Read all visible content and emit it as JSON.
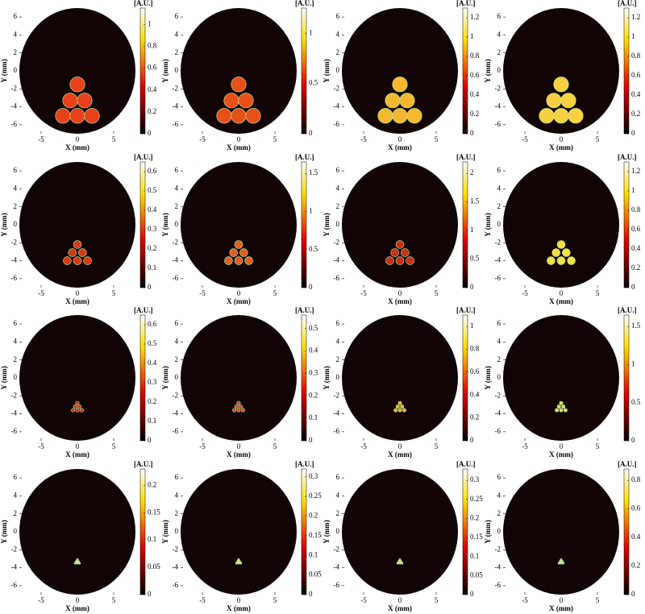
{
  "chart_data": [
    {
      "type": "heatmap",
      "xlabel": "X (mm)",
      "ylabel": "Y (mm)",
      "colorbar_label": "[A.U.]",
      "xlim": [
        -8,
        8
      ],
      "ylim": [
        -7,
        7
      ],
      "xticks": [
        -5,
        0,
        5
      ],
      "yticks": [
        -6,
        -4,
        -2,
        0,
        2,
        4,
        6
      ],
      "clim": [
        0,
        1.15
      ],
      "cticks": [
        0,
        0.2,
        0.4,
        0.6,
        0.8,
        1
      ],
      "x": [
        0,
        -1,
        1,
        -2,
        0,
        2
      ],
      "y": [
        -1.5,
        -3.3,
        -3.3,
        -5,
        -5,
        -5
      ],
      "color": "#e8401a"
    },
    {
      "type": "heatmap",
      "xlabel": "X (mm)",
      "ylabel": "Y (mm)",
      "colorbar_label": "[A.U.]",
      "xlim": [
        -8,
        8
      ],
      "ylim": [
        -7,
        7
      ],
      "xticks": [
        -5,
        0,
        5
      ],
      "yticks": [
        -6,
        -4,
        -2,
        0,
        2,
        4,
        6
      ],
      "clim": [
        0,
        1.25
      ],
      "cticks": [
        0,
        0.5,
        1
      ],
      "x": [
        0,
        -1,
        1,
        -2,
        0,
        2
      ],
      "y": [
        -1.5,
        -3.3,
        -3.3,
        -5,
        -5,
        -5
      ],
      "color": "#e8501a"
    },
    {
      "type": "heatmap",
      "xlabel": "X (mm)",
      "ylabel": "Y (mm)",
      "colorbar_label": "[A.U.]",
      "xlim": [
        -8,
        8
      ],
      "ylim": [
        -7,
        7
      ],
      "xticks": [
        -5,
        0,
        5
      ],
      "yticks": [
        -6,
        -4,
        -2,
        0,
        2,
        4,
        6
      ],
      "clim": [
        0,
        1.3
      ],
      "cticks": [
        0,
        0.2,
        0.4,
        0.6,
        0.8,
        1,
        1.2
      ],
      "x": [
        0,
        -1,
        1,
        -2,
        0,
        2
      ],
      "y": [
        -1.5,
        -3.3,
        -3.3,
        -5,
        -5,
        -5
      ],
      "color": "#f4b830"
    },
    {
      "type": "heatmap",
      "xlabel": "X (mm)",
      "ylabel": "Y (mm)",
      "colorbar_label": "[A.U.]",
      "xlim": [
        -8,
        8
      ],
      "ylim": [
        -7,
        7
      ],
      "xticks": [
        -5,
        0,
        5
      ],
      "yticks": [
        -6,
        -4,
        -2,
        0,
        2,
        4,
        6
      ],
      "clim": [
        0,
        1.3
      ],
      "cticks": [
        0,
        0.2,
        0.4,
        0.6,
        0.8,
        1,
        1.2
      ],
      "x": [
        0,
        -1,
        1,
        -2,
        0,
        2
      ],
      "y": [
        -1.5,
        -3.3,
        -3.3,
        -5,
        -5,
        -5
      ],
      "color": "#f6d040"
    },
    {
      "type": "heatmap",
      "xlabel": "X (mm)",
      "ylabel": "Y (mm)",
      "colorbar_label": "[A.U.]",
      "xlim": [
        -8,
        8
      ],
      "ylim": [
        -7,
        7
      ],
      "xticks": [
        -5,
        0,
        5
      ],
      "yticks": [
        -6,
        -4,
        -2,
        0,
        2,
        4,
        6
      ],
      "clim": [
        0,
        0.65
      ],
      "cticks": [
        0,
        0.1,
        0.2,
        0.3,
        0.4,
        0.5,
        0.6
      ],
      "x": [
        0,
        -0.7,
        0.7,
        -1.4,
        0,
        1.4
      ],
      "y": [
        -2.2,
        -3.1,
        -3.1,
        -4,
        -4,
        -4
      ],
      "color": "#d83a18"
    },
    {
      "type": "heatmap",
      "xlabel": "X (mm)",
      "ylabel": "Y (mm)",
      "colorbar_label": "[A.U.]",
      "xlim": [
        -8,
        8
      ],
      "ylim": [
        -7,
        7
      ],
      "xticks": [
        -5,
        0,
        5
      ],
      "yticks": [
        -6,
        -4,
        -2,
        0,
        2,
        4,
        6
      ],
      "clim": [
        0,
        1.65
      ],
      "cticks": [
        0,
        0.5,
        1,
        1.5
      ],
      "x": [
        0,
        -0.7,
        0.7,
        -1.4,
        0,
        1.4
      ],
      "y": [
        -2.2,
        -3.1,
        -3.1,
        -4,
        -4,
        -4
      ],
      "color": "#e06020"
    },
    {
      "type": "heatmap",
      "xlabel": "X (mm)",
      "ylabel": "Y (mm)",
      "colorbar_label": "[A.U.]",
      "xlim": [
        -8,
        8
      ],
      "ylim": [
        -7,
        7
      ],
      "xticks": [
        -5,
        0,
        5
      ],
      "yticks": [
        -6,
        -4,
        -2,
        0,
        2,
        4,
        6
      ],
      "clim": [
        0,
        2.2
      ],
      "cticks": [
        0,
        0.5,
        1,
        1.5,
        2
      ],
      "x": [
        0,
        -0.7,
        0.7,
        -1.4,
        0,
        1.4
      ],
      "y": [
        -2.2,
        -3.1,
        -3.1,
        -4,
        -4,
        -4
      ],
      "color": "#c83018"
    },
    {
      "type": "heatmap",
      "xlabel": "X (mm)",
      "ylabel": "Y (mm)",
      "colorbar_label": "[A.U.]",
      "xlim": [
        -8,
        8
      ],
      "ylim": [
        -7,
        7
      ],
      "xticks": [
        -5,
        0,
        5
      ],
      "yticks": [
        -6,
        -4,
        -2,
        0,
        2,
        4,
        6
      ],
      "clim": [
        0,
        1.3
      ],
      "cticks": [
        0,
        0.2,
        0.4,
        0.6,
        0.8,
        1,
        1.2
      ],
      "x": [
        0,
        -0.7,
        0.7,
        -1.4,
        0,
        1.4
      ],
      "y": [
        -2.2,
        -3.1,
        -3.1,
        -4,
        -4,
        -4
      ],
      "color": "#f2e040"
    },
    {
      "type": "heatmap",
      "xlabel": "X (mm)",
      "ylabel": "Y (mm)",
      "colorbar_label": "[A.U.]",
      "xlim": [
        -8,
        8
      ],
      "ylim": [
        -7,
        7
      ],
      "xticks": [
        -5,
        0,
        5
      ],
      "yticks": [
        -6,
        -4,
        -2,
        0,
        2,
        4,
        6
      ],
      "clim": [
        0,
        0.65
      ],
      "cticks": [
        0,
        0.1,
        0.2,
        0.3,
        0.4,
        0.5,
        0.6
      ],
      "x": [
        0,
        -0.3,
        0.3,
        -0.6,
        0,
        0.6
      ],
      "y": [
        -2.8,
        -3.2,
        -3.2,
        -3.6,
        -3.6,
        -3.6
      ],
      "color": "#c83018"
    },
    {
      "type": "heatmap",
      "xlabel": "X (mm)",
      "ylabel": "Y (mm)",
      "colorbar_label": "[A.U.]",
      "xlim": [
        -8,
        8
      ],
      "ylim": [
        -7,
        7
      ],
      "xticks": [
        -5,
        0,
        5
      ],
      "yticks": [
        -6,
        -4,
        -2,
        0,
        2,
        4,
        6
      ],
      "clim": [
        0,
        0.56
      ],
      "cticks": [
        0,
        0.1,
        0.2,
        0.3,
        0.4,
        0.5
      ],
      "x": [
        0,
        -0.3,
        0.3,
        -0.6,
        0,
        0.6
      ],
      "y": [
        -2.8,
        -3.2,
        -3.2,
        -3.6,
        -3.6,
        -3.6
      ],
      "color": "#d84020"
    },
    {
      "type": "heatmap",
      "xlabel": "X (mm)",
      "ylabel": "Y (mm)",
      "colorbar_label": "[A.U.]",
      "xlim": [
        -8,
        8
      ],
      "ylim": [
        -7,
        7
      ],
      "xticks": [
        -5,
        0,
        5
      ],
      "yticks": [
        -6,
        -4,
        -2,
        0,
        2,
        4,
        6
      ],
      "clim": [
        0,
        1.1
      ],
      "cticks": [
        0,
        0.2,
        0.4,
        0.6,
        0.8,
        1
      ],
      "x": [
        0,
        -0.3,
        0.3,
        -0.6,
        0,
        0.6
      ],
      "y": [
        -2.8,
        -3.2,
        -3.2,
        -3.6,
        -3.6,
        -3.6
      ],
      "color": "#e8b030"
    },
    {
      "type": "heatmap",
      "xlabel": "X (mm)",
      "ylabel": "Y (mm)",
      "colorbar_label": "[A.U.]",
      "xlim": [
        -8,
        8
      ],
      "ylim": [
        -7,
        7
      ],
      "xticks": [
        -5,
        0,
        5
      ],
      "yticks": [
        -6,
        -4,
        -2,
        0,
        2,
        4,
        6
      ],
      "clim": [
        0,
        1.65
      ],
      "cticks": [
        0,
        0.5,
        1,
        1.5
      ],
      "x": [
        0,
        -0.3,
        0.3,
        -0.6,
        0,
        0.6
      ],
      "y": [
        -2.8,
        -3.2,
        -3.2,
        -3.6,
        -3.6,
        -3.6
      ],
      "color": "#c8e060"
    },
    {
      "type": "heatmap",
      "xlabel": "X (mm)",
      "ylabel": "Y (mm)",
      "colorbar_label": "[A.U.]",
      "xlim": [
        -8,
        8
      ],
      "ylim": [
        -7,
        7
      ],
      "xticks": [
        -5,
        0,
        5
      ],
      "yticks": [
        -6,
        -4,
        -2,
        0,
        2,
        4,
        6
      ],
      "clim": [
        0,
        0.23
      ],
      "cticks": [
        0,
        0.05,
        0.1,
        0.15,
        0.2
      ],
      "x": [
        0,
        -0.15,
        0.15,
        -0.3,
        0,
        0.3
      ],
      "y": [
        -3.1,
        -3.3,
        -3.3,
        -3.5,
        -3.5,
        -3.5
      ],
      "color": "#b8f080"
    },
    {
      "type": "heatmap",
      "xlabel": "X (mm)",
      "ylabel": "Y (mm)",
      "colorbar_label": "[A.U.]",
      "xlim": [
        -8,
        8
      ],
      "ylim": [
        -7,
        7
      ],
      "xticks": [
        -5,
        0,
        5
      ],
      "yticks": [
        -6,
        -4,
        -2,
        0,
        2,
        4,
        6
      ],
      "clim": [
        0,
        0.32
      ],
      "cticks": [
        0,
        0.05,
        0.1,
        0.15,
        0.2,
        0.25,
        0.3
      ],
      "x": [
        0,
        -0.15,
        0.15,
        -0.3,
        0,
        0.3
      ],
      "y": [
        -3.1,
        -3.3,
        -3.3,
        -3.5,
        -3.5,
        -3.5
      ],
      "color": "#c0e870"
    },
    {
      "type": "heatmap",
      "xlabel": "X (mm)",
      "ylabel": "Y (mm)",
      "colorbar_label": "[A.U.]",
      "xlim": [
        -8,
        8
      ],
      "ylim": [
        -7,
        7
      ],
      "xticks": [
        -5,
        0,
        5
      ],
      "yticks": [
        -6,
        -4,
        -2,
        0,
        2,
        4,
        6
      ],
      "clim": [
        0,
        0.33
      ],
      "cticks": [
        0,
        0.05,
        0.1,
        0.15,
        0.2,
        0.25,
        0.3
      ],
      "x": [
        0,
        -0.15,
        0.15,
        -0.3,
        0,
        0.3
      ],
      "y": [
        -3.1,
        -3.3,
        -3.3,
        -3.5,
        -3.5,
        -3.5
      ],
      "color": "#d8d050"
    },
    {
      "type": "heatmap",
      "xlabel": "X (mm)",
      "ylabel": "Y (mm)",
      "colorbar_label": "[A.U.]",
      "xlim": [
        -8,
        8
      ],
      "ylim": [
        -7,
        7
      ],
      "xticks": [
        -5,
        0,
        5
      ],
      "yticks": [
        -6,
        -4,
        -2,
        0,
        2,
        4,
        6
      ],
      "clim": [
        0,
        0.88
      ],
      "cticks": [
        0,
        0.2,
        0.4,
        0.6,
        0.8
      ],
      "x": [
        0,
        -0.15,
        0.15,
        -0.3,
        0,
        0.3
      ],
      "y": [
        -3.1,
        -3.3,
        -3.3,
        -3.5,
        -3.5,
        -3.5
      ],
      "color": "#b0e060"
    }
  ]
}
